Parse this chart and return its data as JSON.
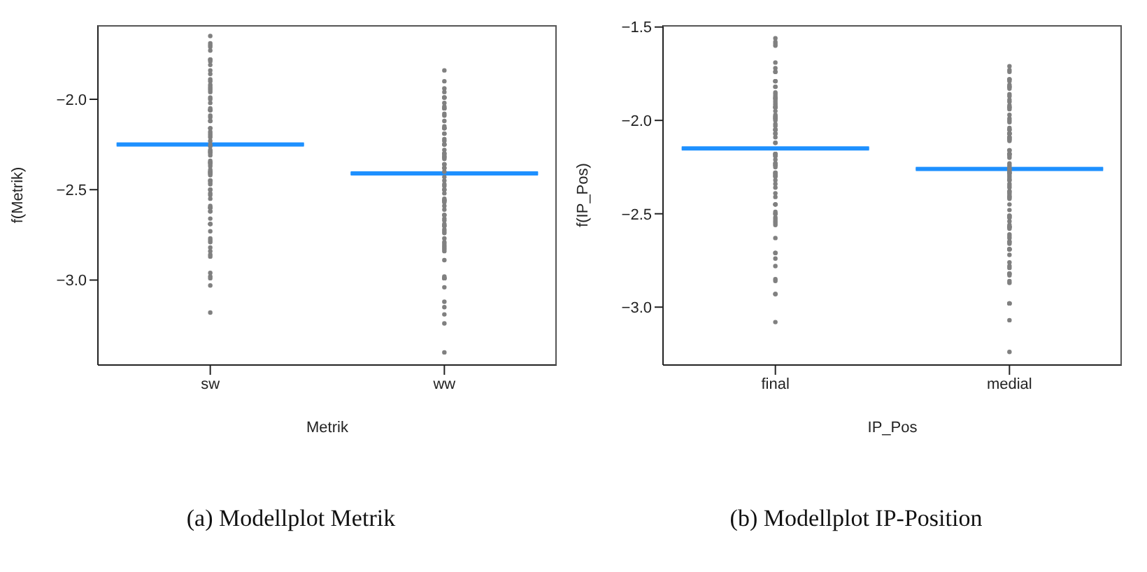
{
  "chart_data": [
    {
      "type": "scatter",
      "title": "(a) Modellplot Metrik",
      "xlabel": "Metrik",
      "ylabel": "f(Metrik)",
      "categories": [
        "sw",
        "ww"
      ],
      "ylim": [
        -3.47,
        -1.59
      ],
      "yticks": [
        {
          "value": -3,
          "label": "−3.0"
        },
        {
          "value": -2.5,
          "label": "−2.5"
        },
        {
          "value": -2,
          "label": "−2.0"
        }
      ],
      "series": [
        {
          "marker": "circle",
          "color": "#808080",
          "x": [
            "sw",
            "sw",
            "sw",
            "sw",
            "sw",
            "sw",
            "sw",
            "sw",
            "sw",
            "sw",
            "sw",
            "sw",
            "sw",
            "sw",
            "sw",
            "sw",
            "sw",
            "sw",
            "sw",
            "sw",
            "sw",
            "sw",
            "sw",
            "sw",
            "sw",
            "sw",
            "sw",
            "sw",
            "sw",
            "sw",
            "sw",
            "sw",
            "sw",
            "sw",
            "sw",
            "sw",
            "sw",
            "sw",
            "sw",
            "sw",
            "sw",
            "sw",
            "sw",
            "sw",
            "sw",
            "sw",
            "sw",
            "sw",
            "sw",
            "sw",
            "sw",
            "sw",
            "sw",
            "sw",
            "sw",
            "sw",
            "sw",
            "sw",
            "sw",
            "sw",
            "sw",
            "sw",
            "sw",
            "sw",
            "sw",
            "sw",
            "sw",
            "sw",
            "sw",
            "sw",
            "sw",
            "sw",
            "sw",
            "sw",
            "sw",
            "sw",
            "sw",
            "sw",
            "sw",
            "sw",
            "sw",
            "sw",
            "sw",
            "sw",
            "sw",
            "sw",
            "ww",
            "ww",
            "ww",
            "ww",
            "ww",
            "ww",
            "ww",
            "ww",
            "ww",
            "ww",
            "ww",
            "ww",
            "ww",
            "ww",
            "ww",
            "ww",
            "ww",
            "ww",
            "ww",
            "ww",
            "ww",
            "ww",
            "ww",
            "ww",
            "ww",
            "ww",
            "ww",
            "ww",
            "ww",
            "ww",
            "ww",
            "ww",
            "ww",
            "ww",
            "ww",
            "ww",
            "ww",
            "ww",
            "ww",
            "ww",
            "ww",
            "ww",
            "ww",
            "ww",
            "ww",
            "ww",
            "ww",
            "ww",
            "ww",
            "ww",
            "ww",
            "ww",
            "ww",
            "ww",
            "ww",
            "ww",
            "ww",
            "ww",
            "ww",
            "ww",
            "ww",
            "ww",
            "ww",
            "ww",
            "ww",
            "ww",
            "ww",
            "ww",
            "ww",
            "ww",
            "ww",
            "ww",
            "ww",
            "ww",
            "ww",
            "ww",
            "ww",
            "ww",
            "ww"
          ],
          "values": [
            -1.65,
            -1.69,
            -1.71,
            -1.7,
            -1.73,
            -1.78,
            -1.78,
            -1.79,
            -1.81,
            -1.84,
            -1.86,
            -1.89,
            -1.9,
            -1.96,
            -1.95,
            -1.92,
            -1.94,
            -1.93,
            -2.0,
            -2.02,
            -1.99,
            -2.06,
            -2.05,
            -2.06,
            -2.06,
            -2.09,
            -2.1,
            -2.12,
            -2.12,
            -2.18,
            -2.19,
            -2.16,
            -2.2,
            -2.16,
            -2.21,
            -2.23,
            -2.26,
            -2.25,
            -2.28,
            -2.31,
            -2.29,
            -2.3,
            -2.29,
            -2.35,
            -2.35,
            -2.36,
            -2.34,
            -2.37,
            -2.4,
            -2.41,
            -2.4,
            -2.41,
            -2.42,
            -2.39,
            -2.45,
            -2.47,
            -2.45,
            -2.46,
            -2.5,
            -2.52,
            -2.55,
            -2.5,
            -2.53,
            -2.62,
            -2.66,
            -2.6,
            -2.62,
            -2.6,
            -2.6,
            -2.59,
            -2.69,
            -2.69,
            -2.69,
            -2.73,
            -2.79,
            -2.77,
            -2.78,
            -2.84,
            -2.82,
            -2.87,
            -2.86,
            -2.96,
            -2.98,
            -2.99,
            -3.03,
            -3.18,
            -1.84,
            -1.9,
            -1.94,
            -1.99,
            -1.96,
            -1.99,
            -1.99,
            -2.16,
            -2.16,
            -2.02,
            -2.05,
            -2.04,
            -2.12,
            -2.19,
            -2.25,
            -2.16,
            -2.19,
            -2.05,
            -2.08,
            -2.09,
            -2.15,
            -2.22,
            -2.25,
            -2.3,
            -2.3,
            -2.25,
            -2.28,
            -2.23,
            -2.33,
            -2.36,
            -2.36,
            -2.32,
            -2.31,
            -2.32,
            -2.38,
            -2.38,
            -2.4,
            -2.45,
            -2.48,
            -2.43,
            -2.47,
            -2.5,
            -2.5,
            -2.52,
            -2.56,
            -2.56,
            -2.55,
            -2.59,
            -2.61,
            -2.56,
            -2.57,
            -2.66,
            -2.64,
            -2.64,
            -2.7,
            -2.7,
            -2.67,
            -2.73,
            -2.69,
            -2.72,
            -2.74,
            -2.79,
            -2.81,
            -2.77,
            -2.8,
            -2.82,
            -2.83,
            -2.89,
            -2.84,
            -2.99,
            -2.99,
            -2.98,
            -2.99,
            -3.04,
            -3.12,
            -3.15,
            -3.19,
            -3.24,
            -3.4
          ]
        },
        {
          "type": "box",
          "color": "#1e90ff",
          "boxes": [
            {
              "low": -2.25,
              "q1": -2.25,
              "median": -2.25,
              "q3": -2.25,
              "high": -2.25
            },
            {
              "low": -2.41,
              "q1": -2.41,
              "median": -2.41,
              "q3": -2.41,
              "high": -2.41
            }
          ]
        }
      ]
    },
    {
      "type": "scatter",
      "title": "(b) Modellplot IP-Position",
      "xlabel": "IP_Pos",
      "ylabel": "f(IP_Pos)",
      "categories": [
        "final",
        "medial"
      ],
      "ylim": [
        -3.31,
        -1.49
      ],
      "yticks": [
        {
          "value": -3,
          "label": "−3.0"
        },
        {
          "value": -2.5,
          "label": "−2.5"
        },
        {
          "value": -2,
          "label": "−2.0"
        },
        {
          "value": -1.5,
          "label": "−1.5"
        }
      ],
      "series": [
        {
          "marker": "circle",
          "color": "#808080",
          "x": [
            "final",
            "final",
            "final",
            "final",
            "final",
            "final",
            "final",
            "final",
            "final",
            "final",
            "final",
            "final",
            "final",
            "final",
            "final",
            "final",
            "final",
            "final",
            "final",
            "final",
            "final",
            "final",
            "final",
            "final",
            "final",
            "final",
            "final",
            "final",
            "final",
            "final",
            "final",
            "final",
            "final",
            "final",
            "final",
            "final",
            "final",
            "final",
            "final",
            "final",
            "final",
            "final",
            "final",
            "final",
            "final",
            "final",
            "final",
            "final",
            "final",
            "final",
            "final",
            "final",
            "final",
            "final",
            "final",
            "final",
            "final",
            "final",
            "final",
            "final",
            "final",
            "final",
            "final",
            "final",
            "final",
            "final",
            "final",
            "final",
            "final",
            "final",
            "final",
            "final",
            "final",
            "final",
            "final",
            "final",
            "final",
            "final",
            "final",
            "final",
            "final",
            "final",
            "final",
            "final",
            "final",
            "medial",
            "medial",
            "medial",
            "medial",
            "medial",
            "medial",
            "medial",
            "medial",
            "medial",
            "medial",
            "medial",
            "medial",
            "medial",
            "medial",
            "medial",
            "medial",
            "medial",
            "medial",
            "medial",
            "medial",
            "medial",
            "medial",
            "medial",
            "medial",
            "medial",
            "medial",
            "medial",
            "medial",
            "medial",
            "medial",
            "medial",
            "medial",
            "medial",
            "medial",
            "medial",
            "medial",
            "medial",
            "medial",
            "medial",
            "medial",
            "medial",
            "medial",
            "medial",
            "medial",
            "medial",
            "medial",
            "medial",
            "medial",
            "medial",
            "medial",
            "medial",
            "medial",
            "medial",
            "medial",
            "medial",
            "medial",
            "medial",
            "medial",
            "medial",
            "medial",
            "medial",
            "medial",
            "medial",
            "medial",
            "medial",
            "medial",
            "medial",
            "medial",
            "medial",
            "medial",
            "medial",
            "medial",
            "medial",
            "medial",
            "medial",
            "medial",
            "medial",
            "medial",
            "medial",
            "medial",
            "medial",
            "medial",
            "medial",
            "medial",
            "medial",
            "medial",
            "medial",
            "medial",
            "medial",
            "medial",
            "medial",
            "medial",
            "medial",
            "medial",
            "medial",
            "medial",
            "medial",
            "medial",
            "medial",
            "medial",
            "medial"
          ],
          "values": [
            -1.56,
            -1.58,
            -1.59,
            -1.6,
            -1.69,
            -1.72,
            -1.74,
            -1.74,
            -1.79,
            -1.79,
            -1.79,
            -1.82,
            -1.82,
            -1.85,
            -1.86,
            -1.89,
            -1.91,
            -1.87,
            -1.93,
            -1.9,
            -1.88,
            -1.88,
            -1.93,
            -1.97,
            -1.93,
            -1.92,
            -1.95,
            -1.99,
            -2.02,
            -2.0,
            -1.98,
            -1.99,
            -1.98,
            -2.05,
            -2.07,
            -2.09,
            -2.05,
            -2.03,
            -2.05,
            -2.12,
            -2.07,
            -2.12,
            -2.18,
            -2.21,
            -2.19,
            -2.18,
            -2.18,
            -2.19,
            -2.23,
            -2.25,
            -2.24,
            -2.23,
            -2.24,
            -2.3,
            -2.28,
            -2.28,
            -2.3,
            -2.29,
            -2.34,
            -2.32,
            -2.41,
            -2.29,
            -2.36,
            -2.45,
            -2.45,
            -2.39,
            -2.45,
            -2.52,
            -2.5,
            -2.5,
            -2.55,
            -2.54,
            -2.56,
            -2.53,
            -2.49,
            -2.63,
            -2.74,
            -2.71,
            -2.71,
            -2.78,
            -2.86,
            -2.85,
            -2.93,
            -2.93,
            -3.08,
            -1.71,
            -1.74,
            -1.73,
            -1.78,
            -1.78,
            -1.79,
            -1.81,
            -1.83,
            -1.82,
            -1.82,
            -1.87,
            -1.86,
            -1.89,
            -1.9,
            -1.93,
            -1.92,
            -1.93,
            -1.94,
            -1.97,
            -2.01,
            -1.99,
            -2.0,
            -2.04,
            -2.05,
            -2.07,
            -2.07,
            -2.07,
            -2.05,
            -2.1,
            -2.09,
            -2.09,
            -2.1,
            -2.11,
            -2.07,
            -2.18,
            -2.16,
            -2.18,
            -2.16,
            -2.19,
            -2.2,
            -2.18,
            -2.23,
            -2.26,
            -2.24,
            -2.27,
            -2.26,
            -2.28,
            -2.25,
            -2.28,
            -2.28,
            -2.31,
            -2.29,
            -2.3,
            -2.32,
            -2.32,
            -2.34,
            -2.36,
            -2.35,
            -2.4,
            -2.41,
            -2.38,
            -2.41,
            -2.38,
            -2.39,
            -2.42,
            -2.45,
            -2.48,
            -2.51,
            -2.52,
            -2.52,
            -2.57,
            -2.57,
            -2.56,
            -2.54,
            -2.57,
            -2.58,
            -2.51,
            -2.61,
            -2.62,
            -2.65,
            -2.65,
            -2.66,
            -2.69,
            -2.72,
            -2.63,
            -2.69,
            -2.69,
            -2.69,
            -2.76,
            -2.78,
            -2.79,
            -2.83,
            -2.82,
            -2.87,
            -2.82,
            -2.86,
            -2.98,
            -2.98,
            -2.98,
            -3.07,
            -3.24
          ]
        },
        {
          "type": "box",
          "color": "#1e90ff",
          "boxes": [
            {
              "low": -2.15,
              "q1": -2.15,
              "median": -2.15,
              "q3": -2.15,
              "high": -2.15
            },
            {
              "low": -2.26,
              "q1": -2.26,
              "median": -2.26,
              "q3": -2.26,
              "high": -2.26
            }
          ]
        }
      ]
    }
  ]
}
